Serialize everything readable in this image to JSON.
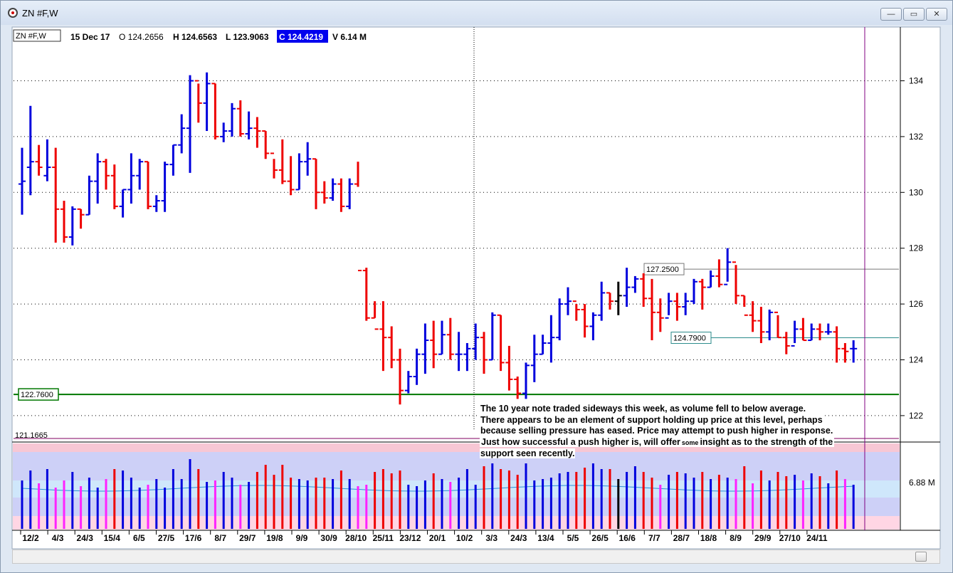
{
  "window": {
    "title": "ZN #F,W",
    "minimize_glyph": "—",
    "maximize_glyph": "▭",
    "close_glyph": "✕"
  },
  "header": {
    "symbol_box": "ZN #F,W",
    "date": "15 Dec 17",
    "open": "O 124.2656",
    "high": "H 124.6563",
    "low": "L 123.9063",
    "close": "C 124.4219",
    "volume": "V 6.14 M"
  },
  "annotation": {
    "line1": "The 10 year note traded sideways this week, as volume fell to below average.",
    "line2": "There appears to be an element of support holding up price at this level, perhaps",
    "line3": "because selling pressure has eased.  Price may attempt to push higher in response.",
    "line4a": "Just how successful a push higher is, will offer",
    "line4b": "some",
    "line4c": "insight as to the strength of the",
    "line5": "support seen recently."
  },
  "colors": {
    "up": "#0000dd",
    "down": "#ee0000",
    "neutral": "#000000",
    "volume_up": "#0000dd",
    "volume_down": "#ee0000",
    "volume_low": "#ff22ff",
    "support": "#007700",
    "highlight_close": "#0000ee"
  },
  "chart_data": {
    "type": "ohlc",
    "price_axis": {
      "ticks": [
        122,
        124,
        126,
        128,
        130,
        132,
        134
      ],
      "ylim": [
        121.0,
        136.0
      ]
    },
    "volume_axis": {
      "label": "6.88 M"
    },
    "x_labels": [
      "12/2",
      "4/3",
      "24/3",
      "15/4",
      "6/5",
      "27/5",
      "17/6",
      "8/7",
      "29/7",
      "19/8",
      "9/9",
      "30/9",
      "28/10",
      "25/11",
      "23/12",
      "20/1",
      "10/2",
      "3/3",
      "24/3",
      "13/4",
      "5/5",
      "26/5",
      "16/6",
      "7/7",
      "28/7",
      "18/8",
      "8/9",
      "29/9",
      "27/10",
      "24/11"
    ],
    "horizontal_levels": [
      {
        "value": 122.76,
        "label": "122.7600"
      },
      {
        "value": 127.25,
        "label": "127.2500"
      },
      {
        "value": 124.79,
        "label": "124.7900"
      },
      {
        "value": 121.1665,
        "label": "121.1665"
      }
    ],
    "bars": [
      [
        130.3,
        129.2,
        131.6,
        130.4
      ],
      [
        130.9,
        129.9,
        133.1,
        131.1
      ],
      [
        131.1,
        130.6,
        131.7,
        130.9
      ],
      [
        130.6,
        130.4,
        131.9,
        130.9
      ],
      [
        130.9,
        128.2,
        131.6,
        129.4
      ],
      [
        129.4,
        128.2,
        129.7,
        128.4
      ],
      [
        128.4,
        128.1,
        129.5,
        129.4
      ],
      [
        129.4,
        128.7,
        129.4,
        129.2
      ],
      [
        129.2,
        129.2,
        130.6,
        130.4
      ],
      [
        130.4,
        129.6,
        131.4,
        131.1
      ],
      [
        131.1,
        130.1,
        131.2,
        130.6
      ],
      [
        130.6,
        129.4,
        131.0,
        129.5
      ],
      [
        129.5,
        129.1,
        130.1,
        130.1
      ],
      [
        130.1,
        129.6,
        131.4,
        130.6
      ],
      [
        130.6,
        130.1,
        131.2,
        131.1
      ],
      [
        131.1,
        129.4,
        131.1,
        129.5
      ],
      [
        129.5,
        129.3,
        129.9,
        129.7
      ],
      [
        129.7,
        129.3,
        131.1,
        131.0
      ],
      [
        131.0,
        130.6,
        131.7,
        131.7
      ],
      [
        131.7,
        131.4,
        132.8,
        132.3
      ],
      [
        132.3,
        130.7,
        134.2,
        134.0
      ],
      [
        134.0,
        132.5,
        133.9,
        133.2
      ],
      [
        133.2,
        132.2,
        134.3,
        133.9
      ],
      [
        133.9,
        131.9,
        133.9,
        132.0
      ],
      [
        132.0,
        131.8,
        132.5,
        132.2
      ],
      [
        132.2,
        132.0,
        133.2,
        133.0
      ],
      [
        133.0,
        132.0,
        133.3,
        132.1
      ],
      [
        132.1,
        131.9,
        132.9,
        132.3
      ],
      [
        132.3,
        131.6,
        132.7,
        132.2
      ],
      [
        132.2,
        131.2,
        132.2,
        131.4
      ],
      [
        131.4,
        130.5,
        131.2,
        130.8
      ],
      [
        130.8,
        130.3,
        131.9,
        130.4
      ],
      [
        130.4,
        129.9,
        131.3,
        130.1
      ],
      [
        130.1,
        130.1,
        131.4,
        131.1
      ],
      [
        131.1,
        130.6,
        131.8,
        131.2
      ],
      [
        131.2,
        129.4,
        131.2,
        130.0
      ],
      [
        130.0,
        129.6,
        130.4,
        129.8
      ],
      [
        129.8,
        129.7,
        130.5,
        130.3
      ],
      [
        130.3,
        129.3,
        130.5,
        129.5
      ],
      [
        129.5,
        129.4,
        130.5,
        130.3
      ],
      [
        130.3,
        130.2,
        131.1,
        127.2
      ],
      [
        127.2,
        125.4,
        127.3,
        125.5
      ],
      [
        125.5,
        125.5,
        126.1,
        125.1
      ],
      [
        125.1,
        123.6,
        126.1,
        124.8
      ],
      [
        124.8,
        123.7,
        125.2,
        124.0
      ],
      [
        124.0,
        122.4,
        124.4,
        122.9
      ],
      [
        122.9,
        122.8,
        123.6,
        123.4
      ],
      [
        123.4,
        123.1,
        124.4,
        124.2
      ],
      [
        124.2,
        123.5,
        125.3,
        124.7
      ],
      [
        124.7,
        123.7,
        125.4,
        124.2
      ],
      [
        124.2,
        124.2,
        125.4,
        124.9
      ],
      [
        124.9,
        124.0,
        125.5,
        124.2
      ],
      [
        124.2,
        123.6,
        125.0,
        124.2
      ],
      [
        124.2,
        123.6,
        124.6,
        124.4
      ],
      [
        124.4,
        124.0,
        125.3,
        124.8
      ],
      [
        124.8,
        123.5,
        125.0,
        124.0
      ],
      [
        124.0,
        124.0,
        125.7,
        125.6
      ],
      [
        125.6,
        123.6,
        125.6,
        123.9
      ],
      [
        123.9,
        122.9,
        124.5,
        123.3
      ],
      [
        123.3,
        122.6,
        123.4,
        122.8
      ],
      [
        122.8,
        122.6,
        123.9,
        123.8
      ],
      [
        123.8,
        123.2,
        124.9,
        124.2
      ],
      [
        124.2,
        124.2,
        124.9,
        124.6
      ],
      [
        124.6,
        123.9,
        125.6,
        124.8
      ],
      [
        124.8,
        124.7,
        126.2,
        126.0
      ],
      [
        126.0,
        125.6,
        126.6,
        126.1
      ],
      [
        126.1,
        125.4,
        126.0,
        125.8
      ],
      [
        125.8,
        124.8,
        126.0,
        125.2
      ],
      [
        125.2,
        124.7,
        125.7,
        125.6
      ],
      [
        125.6,
        125.4,
        126.8,
        126.4
      ],
      [
        126.4,
        125.8,
        126.4,
        126.1
      ],
      [
        126.1,
        125.6,
        126.8,
        126.3
      ],
      [
        126.3,
        125.9,
        127.3,
        126.6
      ],
      [
        126.6,
        126.4,
        127.0,
        126.9
      ],
      [
        126.9,
        125.9,
        127.1,
        126.2
      ],
      [
        126.2,
        124.7,
        126.9,
        125.7
      ],
      [
        125.7,
        125.0,
        126.2,
        125.5
      ],
      [
        125.5,
        125.6,
        126.4,
        126.1
      ],
      [
        126.1,
        125.4,
        126.4,
        125.9
      ],
      [
        125.9,
        125.6,
        126.4,
        126.1
      ],
      [
        126.1,
        126.0,
        126.9,
        126.8
      ],
      [
        126.8,
        125.8,
        126.9,
        126.6
      ],
      [
        126.6,
        126.6,
        127.2,
        127.0
      ],
      [
        127.0,
        126.6,
        127.6,
        126.7
      ],
      [
        126.7,
        126.8,
        128.0,
        127.5
      ],
      [
        127.5,
        126.0,
        127.4,
        126.3
      ],
      [
        126.3,
        125.9,
        126.3,
        125.6
      ],
      [
        125.6,
        125.0,
        126.1,
        125.4
      ],
      [
        125.4,
        124.6,
        125.9,
        125.0
      ],
      [
        125.0,
        124.7,
        125.8,
        125.7
      ],
      [
        125.7,
        124.8,
        125.6,
        124.8
      ],
      [
        124.8,
        124.2,
        125.0,
        124.5
      ],
      [
        124.5,
        124.6,
        125.4,
        125.1
      ],
      [
        125.1,
        124.7,
        125.5,
        124.7
      ],
      [
        124.7,
        124.7,
        125.3,
        125.1
      ],
      [
        125.1,
        124.7,
        125.3,
        125.0
      ],
      [
        125.0,
        124.9,
        125.3,
        125.0
      ],
      [
        125.0,
        123.9,
        125.2,
        124.4
      ],
      [
        124.4,
        123.9,
        124.6,
        124.3
      ],
      [
        124.4,
        123.9,
        124.7,
        124.4
      ]
    ],
    "volume": [
      68,
      82,
      64,
      84,
      58,
      68,
      80,
      60,
      72,
      58,
      70,
      84,
      82,
      72,
      58,
      62,
      70,
      58,
      84,
      70,
      98,
      84,
      66,
      68,
      80,
      72,
      62,
      66,
      80,
      90,
      76,
      90,
      72,
      70,
      68,
      72,
      72,
      70,
      82,
      70,
      60,
      62,
      80,
      84,
      78,
      82,
      62,
      60,
      68,
      78,
      70,
      66,
      72,
      84,
      62,
      88,
      92,
      84,
      82,
      76,
      92,
      68,
      70,
      72,
      78,
      80,
      80,
      86,
      92,
      84,
      84,
      70,
      80,
      88,
      80,
      72,
      62,
      76,
      80,
      78,
      72,
      80,
      70,
      76,
      72,
      70,
      88,
      64,
      82,
      68,
      80,
      74,
      76,
      68,
      78,
      74,
      64,
      82,
      70,
      62
    ]
  }
}
